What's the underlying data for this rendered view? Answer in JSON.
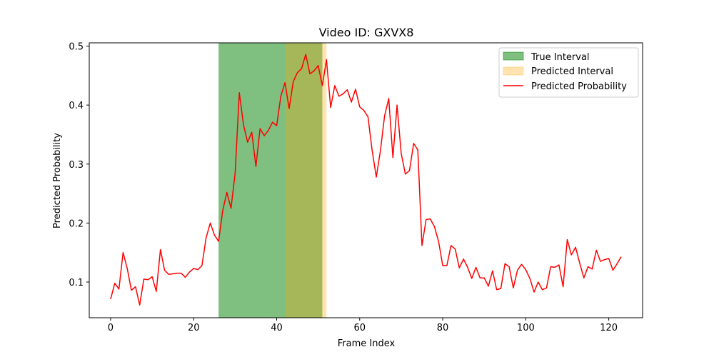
{
  "chart_data": {
    "type": "line",
    "title": "Video ID: GXVX8",
    "xlabel": "Frame Index",
    "ylabel": "Predicted Probability",
    "xlim": [
      -5.15,
      128.15
    ],
    "ylim": [
      0.0395,
      0.5055
    ],
    "xticks": [
      0,
      20,
      40,
      60,
      80,
      100,
      120
    ],
    "yticks": [
      0.1,
      0.2,
      0.3,
      0.4,
      0.5
    ],
    "ytick_labels": [
      "0.1",
      "0.2",
      "0.3",
      "0.4",
      "0.5"
    ],
    "grid": false,
    "legend_position": "upper right",
    "spans": [
      {
        "name": "True Interval",
        "x0": 26,
        "x1": 51,
        "color": "#008000",
        "alpha": 0.5
      },
      {
        "name": "Predicted Interval",
        "x0": 42,
        "x1": 52,
        "color": "#ffa500",
        "alpha": 0.3
      }
    ],
    "series": [
      {
        "name": "Predicted Probability",
        "color": "#ff0000",
        "values": [
          0.071,
          0.098,
          0.088,
          0.15,
          0.123,
          0.086,
          0.092,
          0.061,
          0.105,
          0.104,
          0.109,
          0.084,
          0.155,
          0.12,
          0.113,
          0.114,
          0.115,
          0.115,
          0.108,
          0.117,
          0.123,
          0.121,
          0.128,
          0.175,
          0.2,
          0.18,
          0.169,
          0.221,
          0.252,
          0.225,
          0.285,
          0.421,
          0.367,
          0.337,
          0.354,
          0.296,
          0.36,
          0.348,
          0.357,
          0.371,
          0.365,
          0.415,
          0.438,
          0.394,
          0.44,
          0.455,
          0.462,
          0.486,
          0.453,
          0.458,
          0.467,
          0.433,
          0.477,
          0.396,
          0.433,
          0.415,
          0.419,
          0.426,
          0.405,
          0.427,
          0.397,
          0.391,
          0.38,
          0.323,
          0.278,
          0.323,
          0.382,
          0.411,
          0.311,
          0.4,
          0.318,
          0.283,
          0.289,
          0.335,
          0.324,
          0.162,
          0.206,
          0.207,
          0.194,
          0.169,
          0.128,
          0.128,
          0.162,
          0.156,
          0.124,
          0.139,
          0.125,
          0.106,
          0.125,
          0.107,
          0.107,
          0.093,
          0.119,
          0.087,
          0.089,
          0.131,
          0.126,
          0.09,
          0.12,
          0.13,
          0.121,
          0.106,
          0.083,
          0.1,
          0.087,
          0.09,
          0.126,
          0.125,
          0.129,
          0.092,
          0.172,
          0.146,
          0.159,
          0.132,
          0.107,
          0.126,
          0.122,
          0.154,
          0.135,
          0.138,
          0.14,
          0.12,
          0.131,
          0.143
        ]
      }
    ]
  }
}
